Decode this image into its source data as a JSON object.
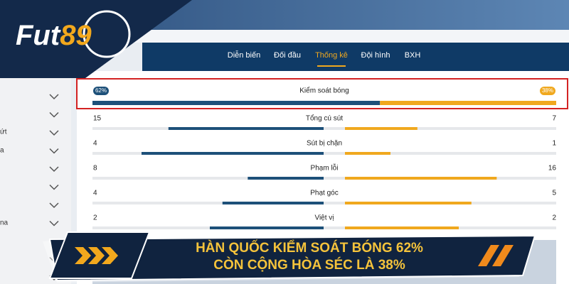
{
  "logo": {
    "part1": "Fut",
    "part2": "89"
  },
  "tabs": {
    "items": [
      "Diễn biến",
      "Đối đầu",
      "Thống kê",
      "Đội hình",
      "BXH"
    ],
    "active": 2
  },
  "sidebar": {
    "items": [
      "ứt",
      "a",
      "na"
    ]
  },
  "possession": {
    "label": "Kiểm soát bóng",
    "left": {
      "value": 62,
      "label": "62%"
    },
    "right": {
      "value": 38,
      "label": "38%"
    }
  },
  "stats": [
    {
      "label": "Tổng cú sút",
      "left": 15,
      "right": 7
    },
    {
      "label": "Sút bị chặn",
      "left": 4,
      "right": 1
    },
    {
      "label": "Phạm lỗi",
      "left": 8,
      "right": 16
    },
    {
      "label": "Phạt góc",
      "left": 4,
      "right": 5
    },
    {
      "label": "Việt vị",
      "left": 2,
      "right": 2
    }
  ],
  "banner": {
    "line1": "HÀN QUỐC KIỂM SOÁT BÓNG 62%",
    "line2": "CÒN CỘNG HÒA SÉC LÀ 38%"
  }
}
